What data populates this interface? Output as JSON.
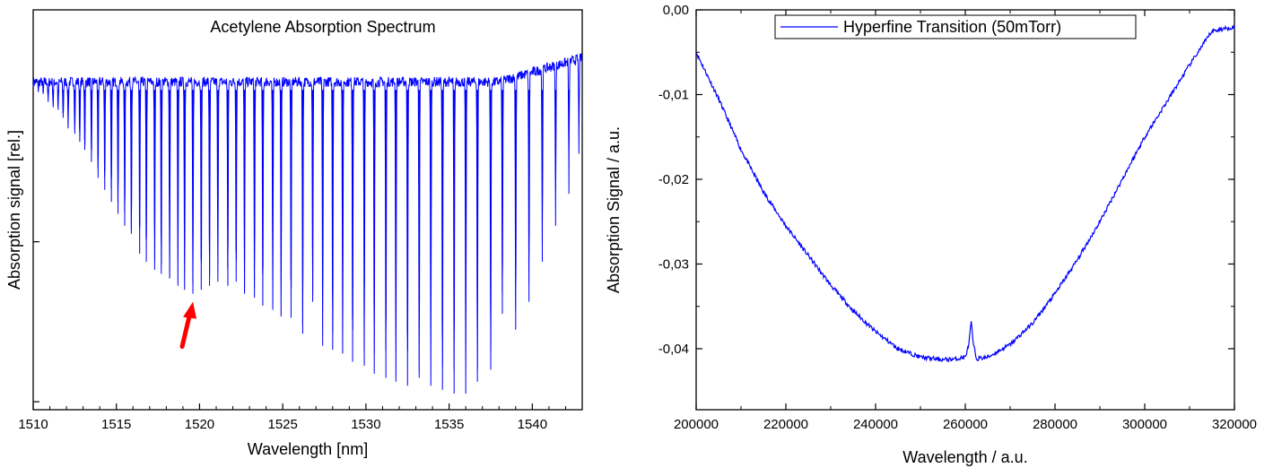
{
  "chart_data": [
    {
      "type": "line",
      "title": "Acetylene Absorption Spectrum",
      "xlabel": "Wavelength [nm]",
      "ylabel": "Absorption signal [rel.]",
      "xlim": [
        1510,
        1543
      ],
      "ylim": [
        0.18,
        1.18
      ],
      "x_ticks": [
        1510,
        1515,
        1520,
        1525,
        1530,
        1535,
        1540
      ],
      "y_ticks_unlabeled": [
        0.2,
        0.6,
        1.0
      ],
      "grid": false,
      "line_color": "#0000ff",
      "baseline": 1.0,
      "absorption_lines": [
        {
          "x": 1510.3,
          "y": 0.98
        },
        {
          "x": 1510.6,
          "y": 0.97
        },
        {
          "x": 1510.9,
          "y": 0.95
        },
        {
          "x": 1511.2,
          "y": 0.94
        },
        {
          "x": 1511.5,
          "y": 0.93
        },
        {
          "x": 1511.8,
          "y": 0.91
        },
        {
          "x": 1512.1,
          "y": 0.89
        },
        {
          "x": 1512.5,
          "y": 0.87
        },
        {
          "x": 1512.8,
          "y": 0.85
        },
        {
          "x": 1513.1,
          "y": 0.83
        },
        {
          "x": 1513.5,
          "y": 0.8
        },
        {
          "x": 1513.9,
          "y": 0.76
        },
        {
          "x": 1514.3,
          "y": 0.73
        },
        {
          "x": 1514.7,
          "y": 0.7
        },
        {
          "x": 1515.1,
          "y": 0.67
        },
        {
          "x": 1515.5,
          "y": 0.64
        },
        {
          "x": 1515.9,
          "y": 0.62
        },
        {
          "x": 1516.4,
          "y": 0.57
        },
        {
          "x": 1516.8,
          "y": 0.55
        },
        {
          "x": 1517.3,
          "y": 0.53
        },
        {
          "x": 1517.7,
          "y": 0.52
        },
        {
          "x": 1518.2,
          "y": 0.51
        },
        {
          "x": 1518.7,
          "y": 0.49
        },
        {
          "x": 1519.1,
          "y": 0.48
        },
        {
          "x": 1519.6,
          "y": 0.47
        },
        {
          "x": 1520.1,
          "y": 0.48
        },
        {
          "x": 1520.6,
          "y": 0.49
        },
        {
          "x": 1521.1,
          "y": 0.5
        },
        {
          "x": 1521.7,
          "y": 0.49
        },
        {
          "x": 1522.2,
          "y": 0.5
        },
        {
          "x": 1522.7,
          "y": 0.47
        },
        {
          "x": 1523.3,
          "y": 0.46
        },
        {
          "x": 1523.8,
          "y": 0.44
        },
        {
          "x": 1524.4,
          "y": 0.43
        },
        {
          "x": 1524.9,
          "y": 0.42
        },
        {
          "x": 1525.5,
          "y": 0.41
        },
        {
          "x": 1526.2,
          "y": 0.37
        },
        {
          "x": 1526.8,
          "y": 0.45
        },
        {
          "x": 1527.4,
          "y": 0.34
        },
        {
          "x": 1528.0,
          "y": 0.33
        },
        {
          "x": 1528.6,
          "y": 0.32
        },
        {
          "x": 1529.2,
          "y": 0.3
        },
        {
          "x": 1529.9,
          "y": 0.29
        },
        {
          "x": 1530.5,
          "y": 0.27
        },
        {
          "x": 1531.2,
          "y": 0.26
        },
        {
          "x": 1531.8,
          "y": 0.25
        },
        {
          "x": 1532.5,
          "y": 0.24
        },
        {
          "x": 1533.2,
          "y": 0.26
        },
        {
          "x": 1533.9,
          "y": 0.24
        },
        {
          "x": 1534.6,
          "y": 0.23
        },
        {
          "x": 1535.3,
          "y": 0.22
        },
        {
          "x": 1536.0,
          "y": 0.22
        },
        {
          "x": 1536.7,
          "y": 0.25
        },
        {
          "x": 1537.5,
          "y": 0.28
        },
        {
          "x": 1538.2,
          "y": 0.42
        },
        {
          "x": 1539.0,
          "y": 0.38
        },
        {
          "x": 1539.8,
          "y": 0.45
        },
        {
          "x": 1540.6,
          "y": 0.55
        },
        {
          "x": 1541.4,
          "y": 0.64
        },
        {
          "x": 1542.2,
          "y": 0.72
        },
        {
          "x": 1542.8,
          "y": 0.82
        }
      ],
      "annotations": [
        {
          "type": "arrow",
          "color": "#ff0000",
          "points_to": {
            "x": 1519.6,
            "y": 0.45
          }
        }
      ]
    },
    {
      "type": "line",
      "title": "",
      "legend": [
        "Hyperfine Transition (50mTorr)"
      ],
      "legend_position": "top",
      "xlabel": "Wavelength / a.u.",
      "ylabel": "Absorption Signal / a.u.",
      "xlim": [
        200000,
        320000
      ],
      "ylim": [
        -0.0472,
        0.0
      ],
      "x_ticks": [
        200000,
        220000,
        240000,
        260000,
        280000,
        300000,
        320000
      ],
      "y_ticks": [
        -0.04,
        -0.03,
        -0.02,
        -0.01,
        0.0
      ],
      "y_tick_labels": [
        "-0,04",
        "-0,03",
        "-0,02",
        "-0,01",
        "0,00"
      ],
      "grid": false,
      "series": [
        {
          "name": "Hyperfine Transition (50mTorr)",
          "color": "#0000ff",
          "x": [
            200000,
            205000,
            210000,
            215000,
            220000,
            225000,
            230000,
            235000,
            240000,
            245000,
            250000,
            255000,
            258000,
            260000,
            260800,
            261300,
            261800,
            262500,
            265000,
            270000,
            275000,
            280000,
            285000,
            290000,
            295000,
            300000,
            305000,
            310000,
            315000,
            320000
          ],
          "y": [
            -0.005,
            -0.0105,
            -0.0165,
            -0.0215,
            -0.0255,
            -0.029,
            -0.0325,
            -0.0355,
            -0.038,
            -0.04,
            -0.041,
            -0.0413,
            -0.0412,
            -0.041,
            -0.0395,
            -0.0368,
            -0.0395,
            -0.0412,
            -0.041,
            -0.0395,
            -0.037,
            -0.0335,
            -0.0295,
            -0.025,
            -0.02,
            -0.015,
            -0.0108,
            -0.0065,
            -0.0025,
            -0.002
          ]
        }
      ]
    }
  ]
}
